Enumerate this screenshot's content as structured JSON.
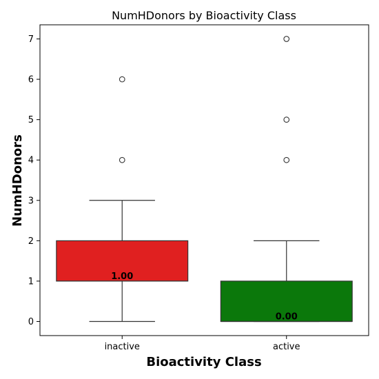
{
  "chart_data": {
    "type": "box",
    "title": "NumHDonors by Bioactivity Class",
    "xlabel": "Bioactivity Class",
    "ylabel": "NumHDonors",
    "ylim": [
      -0.35,
      7.35
    ],
    "yticks": [
      "0",
      "1",
      "2",
      "3",
      "4",
      "5",
      "6",
      "7"
    ],
    "categories": [
      "inactive",
      "active"
    ],
    "series": [
      {
        "category": "inactive",
        "color": "#e02020",
        "q1": 1,
        "median": 1,
        "q3": 2,
        "whisker_low": 0,
        "whisker_high": 3,
        "outliers": [
          4,
          6
        ],
        "median_label": "1.00"
      },
      {
        "category": "active",
        "color": "#0b780b",
        "q1": 0,
        "median": 0,
        "q3": 1,
        "whisker_low": 0,
        "whisker_high": 2,
        "outliers": [
          4,
          5,
          7
        ],
        "median_label": "0.00"
      }
    ],
    "grid": false,
    "legend": "none"
  }
}
